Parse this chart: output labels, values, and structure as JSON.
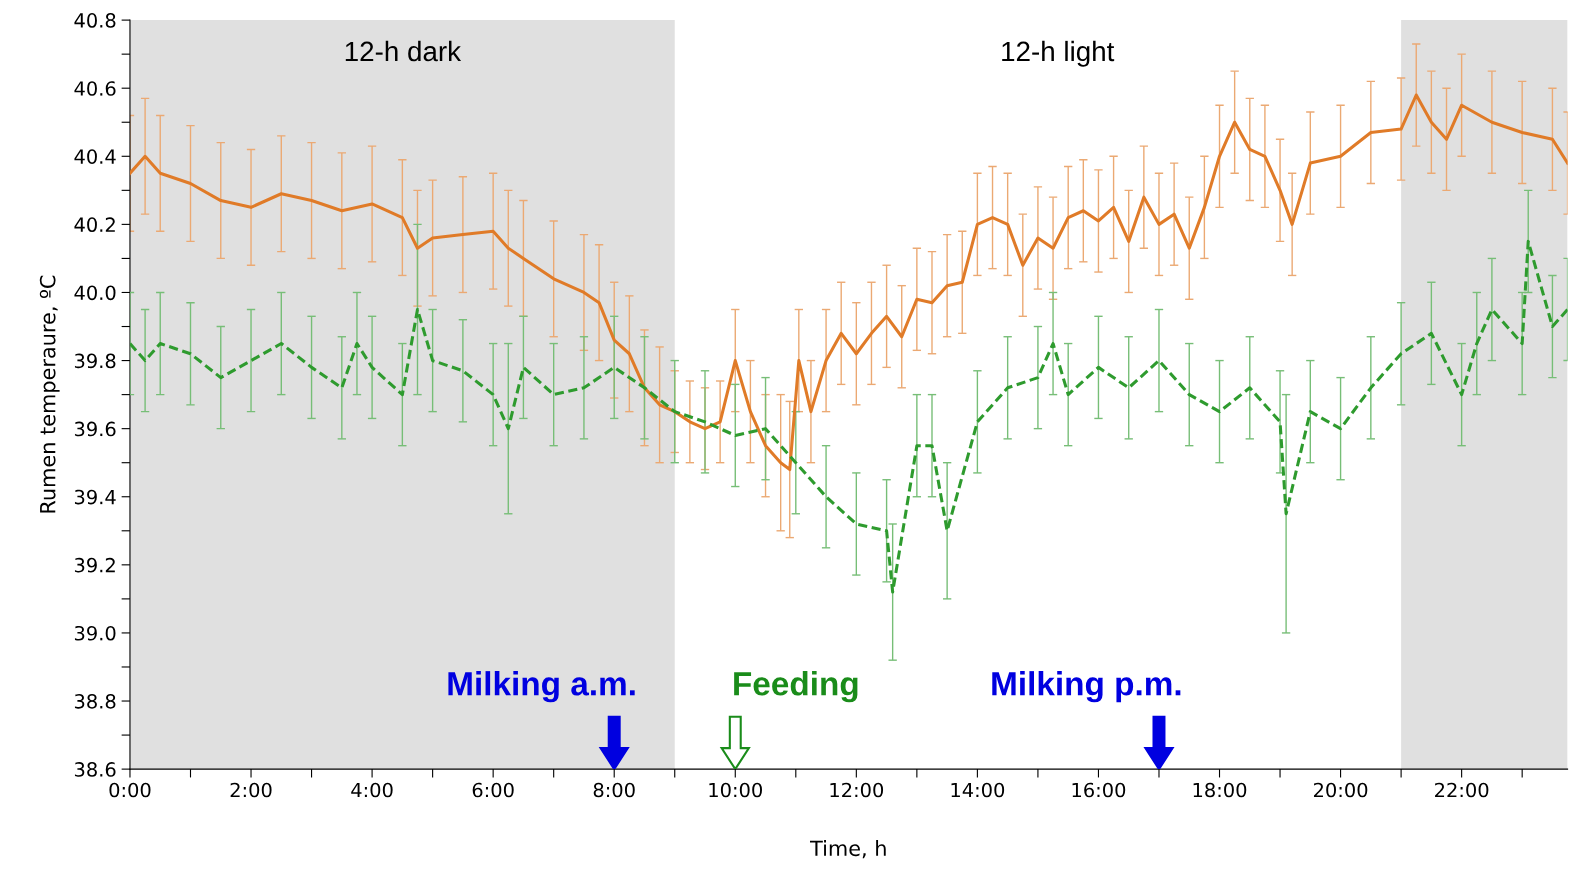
{
  "chart_data": {
    "type": "line",
    "xlabel": "Time, h",
    "ylabel": "Rumen temperaure, ºC",
    "xlim": [
      0,
      23.75
    ],
    "ylim": [
      38.6,
      40.8
    ],
    "xticks": [
      {
        "value": 0,
        "label": "0:00"
      },
      {
        "value": 1,
        "label": null
      },
      {
        "value": 2,
        "label": "2:00"
      },
      {
        "value": 3,
        "label": null
      },
      {
        "value": 4,
        "label": "4:00"
      },
      {
        "value": 5,
        "label": null
      },
      {
        "value": 6,
        "label": "6:00"
      },
      {
        "value": 7,
        "label": null
      },
      {
        "value": 8,
        "label": "8:00"
      },
      {
        "value": 9,
        "label": null
      },
      {
        "value": 10,
        "label": "10:00"
      },
      {
        "value": 11,
        "label": null
      },
      {
        "value": 12,
        "label": "12:00"
      },
      {
        "value": 13,
        "label": null
      },
      {
        "value": 14,
        "label": "14:00"
      },
      {
        "value": 15,
        "label": null
      },
      {
        "value": 16,
        "label": "16:00"
      },
      {
        "value": 17,
        "label": null
      },
      {
        "value": 18,
        "label": "18:00"
      },
      {
        "value": 19,
        "label": null
      },
      {
        "value": 20,
        "label": "20:00"
      },
      {
        "value": 21,
        "label": null
      },
      {
        "value": 22,
        "label": "22:00"
      },
      {
        "value": 23,
        "label": null
      }
    ],
    "yticks": [
      38.6,
      {
        "value": 38.7,
        "label": null
      },
      38.8,
      {
        "value": 38.9,
        "label": null
      },
      {
        "value": 39.0,
        "label": "39.0"
      },
      {
        "value": 39.1,
        "label": null
      },
      39.2,
      {
        "value": 39.3,
        "label": null
      },
      39.4,
      {
        "value": 39.5,
        "label": null
      },
      39.6,
      {
        "value": 39.7,
        "label": null
      },
      39.8,
      {
        "value": 39.9,
        "label": null
      },
      {
        "value": 40.0,
        "label": "40.0"
      },
      {
        "value": 40.1,
        "label": null
      },
      40.2,
      {
        "value": 40.3,
        "label": null
      },
      40.4,
      {
        "value": 40.5,
        "label": null
      },
      40.6,
      {
        "value": 40.7,
        "label": null
      },
      40.8
    ],
    "bands": [
      {
        "axis": "x",
        "from": 0,
        "to": 9,
        "label": "12-h dark",
        "color": "#e0e0e0"
      },
      {
        "axis": "x",
        "from": 21,
        "to": 23.75,
        "color": "#e0e0e0"
      }
    ],
    "annotations": [
      "12-h light"
    ],
    "ref_lines": [
      {
        "axis": "x",
        "value": 8,
        "label": "Milking a.m.",
        "color": "#0000e0"
      },
      {
        "axis": "x",
        "value": 10,
        "label": "Feeding",
        "color": "#1a8c1a"
      },
      {
        "axis": "x",
        "value": 17,
        "label": "Milking p.m.",
        "color": "#0000e0"
      }
    ],
    "series": [
      {
        "color": "#e07b28",
        "line_style": "solid",
        "x": [
          0,
          0.25,
          0.5,
          1,
          1.5,
          2,
          2.5,
          3,
          3.5,
          4,
          4.5,
          4.75,
          5,
          5.5,
          6,
          6.25,
          6.5,
          7,
          7.5,
          7.75,
          8,
          8.25,
          8.5,
          8.75,
          9,
          9.25,
          9.5,
          9.75,
          10,
          10.25,
          10.5,
          10.75,
          10.9,
          11.05,
          11.25,
          11.5,
          11.75,
          12,
          12.25,
          12.5,
          12.75,
          13,
          13.25,
          13.5,
          13.75,
          14,
          14.25,
          14.5,
          14.75,
          15,
          15.25,
          15.5,
          15.75,
          16,
          16.25,
          16.5,
          16.75,
          17,
          17.25,
          17.5,
          17.75,
          18,
          18.25,
          18.5,
          18.75,
          19,
          19.2,
          19.5,
          20,
          20.5,
          21,
          21.25,
          21.5,
          21.75,
          22,
          22.5,
          23,
          23.5,
          23.75
        ],
        "values": [
          40.35,
          40.4,
          40.35,
          40.32,
          40.27,
          40.25,
          40.29,
          40.27,
          40.24,
          40.26,
          40.22,
          40.13,
          40.16,
          40.17,
          40.18,
          40.13,
          40.1,
          40.04,
          40.0,
          39.97,
          39.86,
          39.82,
          39.72,
          39.67,
          39.65,
          39.62,
          39.6,
          39.62,
          39.8,
          39.65,
          39.55,
          39.5,
          39.48,
          39.8,
          39.65,
          39.8,
          39.88,
          39.82,
          39.88,
          39.93,
          39.87,
          39.98,
          39.97,
          40.02,
          40.03,
          40.2,
          40.22,
          40.2,
          40.08,
          40.16,
          40.13,
          40.22,
          40.24,
          40.21,
          40.25,
          40.15,
          40.28,
          40.2,
          40.23,
          40.13,
          40.25,
          40.4,
          40.5,
          40.42,
          40.4,
          40.3,
          40.2,
          40.38,
          40.4,
          40.47,
          40.48,
          40.58,
          40.5,
          40.45,
          40.55,
          40.5,
          40.47,
          40.45,
          40.38
        ],
        "errors": [
          0.17,
          0.17,
          0.17,
          0.17,
          0.17,
          0.17,
          0.17,
          0.17,
          0.17,
          0.17,
          0.17,
          0.17,
          0.17,
          0.17,
          0.17,
          0.17,
          0.17,
          0.17,
          0.17,
          0.17,
          0.17,
          0.17,
          0.17,
          0.17,
          0.12,
          0.12,
          0.12,
          0.12,
          0.15,
          0.15,
          0.15,
          0.2,
          0.2,
          0.15,
          0.15,
          0.15,
          0.15,
          0.15,
          0.15,
          0.15,
          0.15,
          0.15,
          0.15,
          0.15,
          0.15,
          0.15,
          0.15,
          0.15,
          0.15,
          0.15,
          0.15,
          0.15,
          0.15,
          0.15,
          0.15,
          0.15,
          0.15,
          0.15,
          0.15,
          0.15,
          0.15,
          0.15,
          0.15,
          0.15,
          0.15,
          0.15,
          0.15,
          0.15,
          0.15,
          0.15,
          0.15,
          0.15,
          0.15,
          0.15,
          0.15,
          0.15,
          0.15,
          0.15,
          0.15
        ]
      },
      {
        "color": "#2e9b2e",
        "line_style": "dashed",
        "x": [
          0,
          0.25,
          0.5,
          1,
          1.5,
          2,
          2.5,
          3,
          3.5,
          3.75,
          4,
          4.5,
          4.75,
          5,
          5.5,
          6,
          6.25,
          6.5,
          7,
          7.5,
          8,
          8.5,
          9,
          9.5,
          10,
          10.5,
          11,
          11.5,
          12,
          12.5,
          12.6,
          13,
          13.25,
          13.5,
          14,
          14.5,
          15,
          15.25,
          15.5,
          16,
          16.5,
          17,
          17.5,
          18,
          18.5,
          19,
          19.1,
          19.5,
          20,
          20.5,
          21,
          21.5,
          22,
          22.25,
          22.5,
          23,
          23.1,
          23.5,
          23.75
        ],
        "values": [
          39.85,
          39.8,
          39.85,
          39.82,
          39.75,
          39.8,
          39.85,
          39.78,
          39.72,
          39.85,
          39.78,
          39.7,
          39.95,
          39.8,
          39.77,
          39.7,
          39.6,
          39.78,
          39.7,
          39.72,
          39.78,
          39.72,
          39.65,
          39.62,
          39.58,
          39.6,
          39.5,
          39.4,
          39.32,
          39.3,
          39.12,
          39.55,
          39.55,
          39.3,
          39.62,
          39.72,
          39.75,
          39.85,
          39.7,
          39.78,
          39.72,
          39.8,
          39.7,
          39.65,
          39.72,
          39.62,
          39.35,
          39.65,
          39.6,
          39.72,
          39.82,
          39.88,
          39.7,
          39.85,
          39.95,
          39.85,
          40.15,
          39.9,
          39.95
        ],
        "errors": [
          0.15,
          0.15,
          0.15,
          0.15,
          0.15,
          0.15,
          0.15,
          0.15,
          0.15,
          0.15,
          0.15,
          0.15,
          0.25,
          0.15,
          0.15,
          0.15,
          0.25,
          0.15,
          0.15,
          0.15,
          0.15,
          0.15,
          0.15,
          0.15,
          0.15,
          0.15,
          0.15,
          0.15,
          0.15,
          0.15,
          0.2,
          0.15,
          0.15,
          0.2,
          0.15,
          0.15,
          0.15,
          0.15,
          0.15,
          0.15,
          0.15,
          0.15,
          0.15,
          0.15,
          0.15,
          0.15,
          0.35,
          0.15,
          0.15,
          0.15,
          0.15,
          0.15,
          0.15,
          0.15,
          0.15,
          0.15,
          0.15,
          0.15,
          0.15
        ]
      }
    ]
  }
}
